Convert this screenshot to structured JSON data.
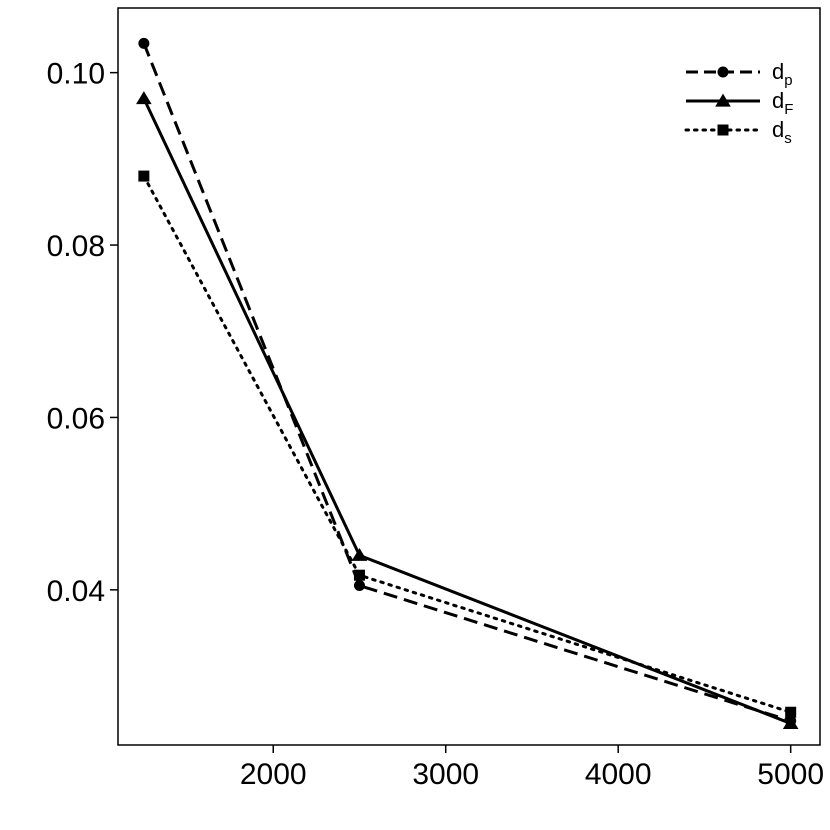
{
  "chart_data": {
    "type": "line",
    "title": "",
    "xlabel": "",
    "ylabel": "",
    "x": [
      1250,
      2500,
      5000
    ],
    "xlim": [
      1100,
      5170
    ],
    "ylim": [
      0.022,
      0.1075
    ],
    "x_ticks": [
      2000,
      3000,
      4000,
      5000
    ],
    "x_tick_labels": [
      "2000",
      "3000",
      "4000",
      "5000"
    ],
    "y_ticks": [
      0.04,
      0.06,
      0.08,
      0.1
    ],
    "y_tick_labels": [
      "0.04",
      "0.06",
      "0.08",
      "0.10"
    ],
    "grid": false,
    "legend_position": "top-right",
    "series": [
      {
        "name": "d",
        "subscript": "p",
        "line": "dashed",
        "marker": "circle",
        "values": [
          0.1034,
          0.0405,
          0.0248
        ]
      },
      {
        "name": "d",
        "subscript": "F",
        "line": "solid",
        "marker": "triangle",
        "values": [
          0.097,
          0.044,
          0.0245
        ]
      },
      {
        "name": "d",
        "subscript": "s",
        "line": "dotted",
        "marker": "square",
        "values": [
          0.088,
          0.0417,
          0.0258
        ]
      }
    ]
  }
}
